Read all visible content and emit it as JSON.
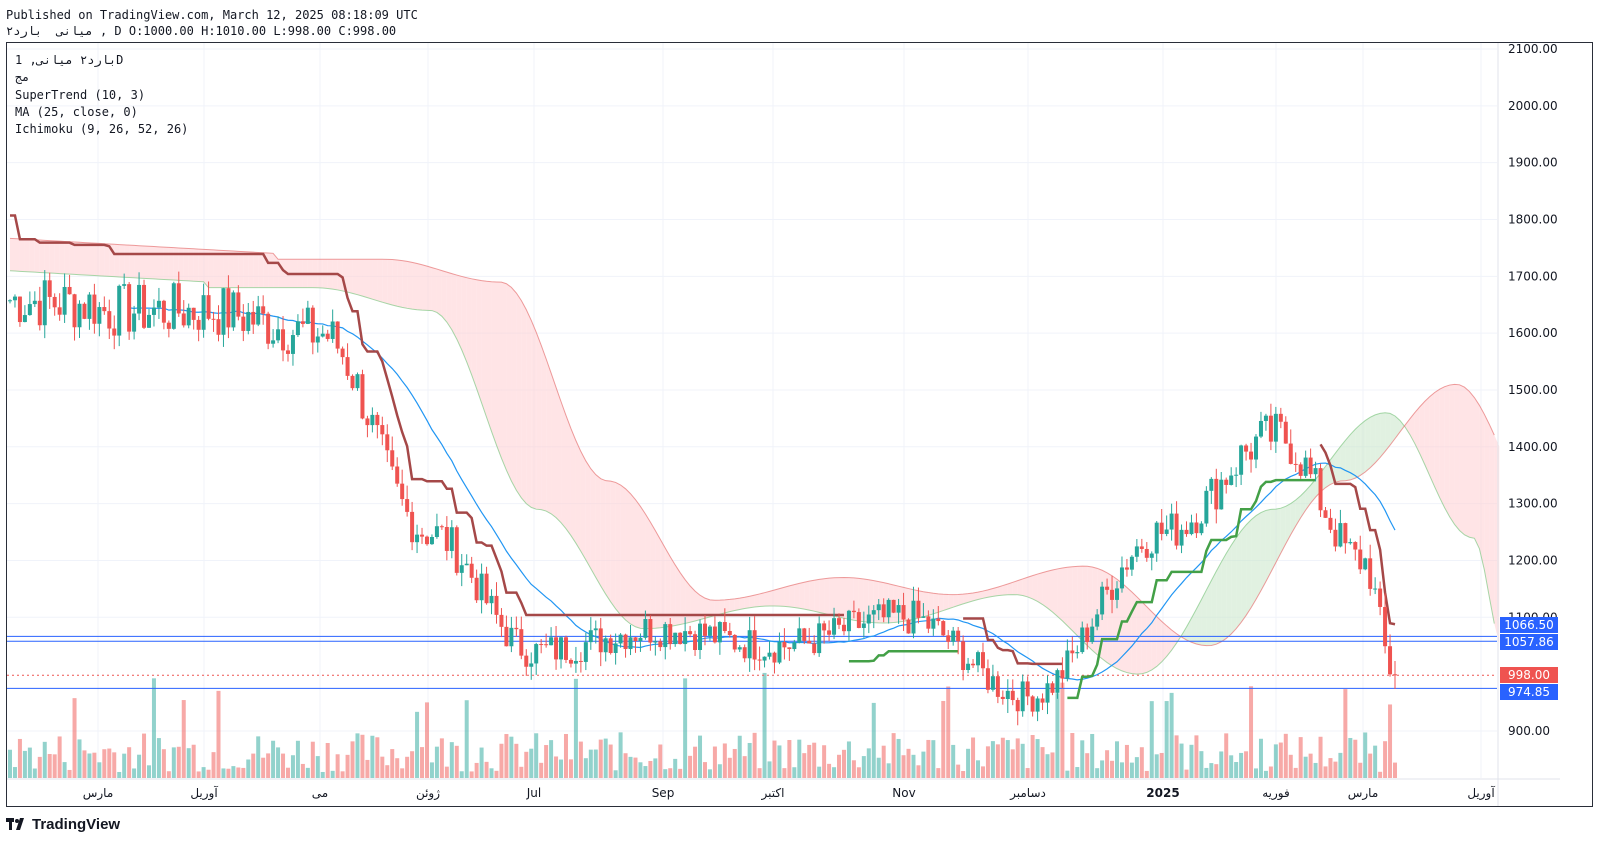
{
  "header": {
    "published": "Published on TradingView.com, March 12, 2025 08:18:09 UTC",
    "ohlc_line": "میانی  بارد۲ , D O:1000.00 H:1010.00 L:998.00 C:998.00"
  },
  "legend": {
    "symbol": "بارد۲ میانی, 1D",
    "exchange": "مج",
    "supertrend": "SuperTrend (10, 3)",
    "ma": "MA (25, close, 0)",
    "ichimoku": "Ichimoku (9, 26, 52, 26)"
  },
  "price_tags": {
    "t1": "1066.50",
    "t2": "1057.86",
    "t3": "998.00",
    "t4": "974.85"
  },
  "colors": {
    "up": "#26a69a",
    "down": "#ef5350",
    "supertrend_up": "#43a047",
    "supertrend_down": "#a54848",
    "ma": "#2196f3",
    "cloud_bull": "#c8e6c9",
    "cloud_bear": "#ffcdd2",
    "hline": "#2962ff"
  },
  "footer": {
    "brand": "TradingView"
  },
  "chart_data": {
    "type": "candlestick",
    "y_axis": {
      "ticks": [
        "2100.00",
        "2000.00",
        "1900.00",
        "1800.00",
        "1700.00",
        "1600.00",
        "1500.00",
        "1400.00",
        "1300.00",
        "1200.00",
        "1100.00",
        "900.00"
      ],
      "min": 830,
      "max": 2100
    },
    "x_axis": {
      "ticks": [
        "مارس",
        "آوریل",
        "می",
        "ژوئن",
        "Jul",
        "Sep",
        "اکتبر",
        "Nov",
        "دسامبر",
        "2025",
        "فوریه",
        "مارس",
        "آوریل"
      ]
    },
    "horizontal_lines": [
      1066.5,
      1057.86,
      974.85
    ],
    "last_close": 998.0,
    "series_anchors": [
      {
        "date": "2024-03",
        "close": 1650
      },
      {
        "date": "2024-04",
        "close": 1640
      },
      {
        "date": "2024-05",
        "close": 1600
      },
      {
        "date": "2024-06",
        "close": 1250
      },
      {
        "date": "2024-07",
        "close": 1040
      },
      {
        "date": "2024-08",
        "close": 1080
      },
      {
        "date": "2024-09",
        "close": 1050
      },
      {
        "date": "2024-10",
        "close": 1100
      },
      {
        "date": "2024-11",
        "close": 960
      },
      {
        "date": "2024-12",
        "close": 1250
      },
      {
        "date": "2025-01",
        "close": 1420
      },
      {
        "date": "2025-02",
        "close": 1200
      },
      {
        "date": "2025-03",
        "close": 998
      }
    ]
  }
}
